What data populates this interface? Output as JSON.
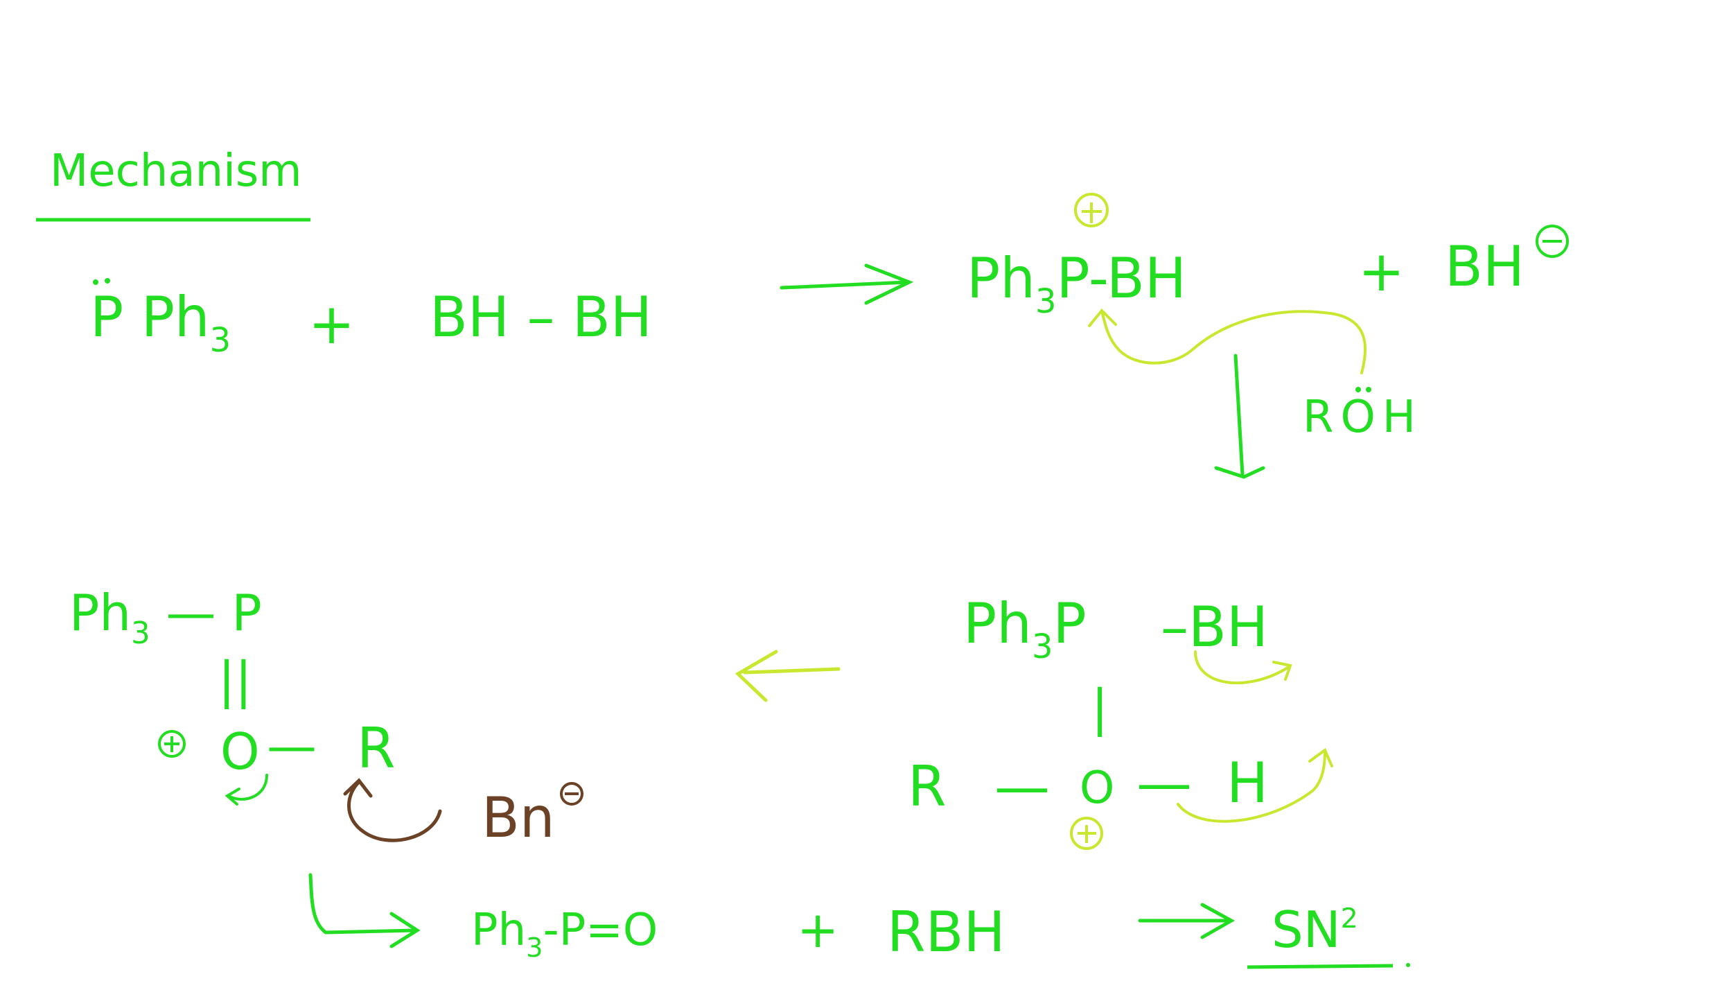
{
  "title": "Mechanism",
  "colors": {
    "ink_green": "#22dd22",
    "ink_yellow": "#c8e830",
    "ink_brown": "#6b4226",
    "background": "#ffffff"
  },
  "step1": {
    "reactant1": {
      "atom": "P",
      "ph": "Ph",
      "sub": "3"
    },
    "plus": "+",
    "reactant2": "BH – BH",
    "product1": {
      "ph": "Ph",
      "sub": "3",
      "atom": "P-BH",
      "charge": "+"
    },
    "plus2": "+",
    "product2": {
      "label": "BH",
      "charge": "−"
    }
  },
  "reagent": "ROH",
  "step2": {
    "top": {
      "ph": "Ph",
      "sub": "3",
      "atom": "P",
      "bond": "–BH"
    },
    "bond": "|",
    "bottom": {
      "r": "R",
      "o": "O",
      "h": "H",
      "bond1": "—",
      "bond2": "—"
    },
    "charge": "+"
  },
  "step3": {
    "top": {
      "ph": "Ph",
      "sub": "3",
      "bond": "—",
      "atom": "P"
    },
    "double_bond": "||",
    "charge": "+",
    "o": "O",
    "bond": "—",
    "r": "R",
    "nucleophile": {
      "label": "Bn",
      "charge": "−"
    }
  },
  "final": {
    "product": "Ph3-P=O",
    "ph": "Ph",
    "sub": "3",
    "rest": "-P=O",
    "plus": "+",
    "rbr": "RBH",
    "mechanism": {
      "label": "SN",
      "sup": "2"
    }
  }
}
